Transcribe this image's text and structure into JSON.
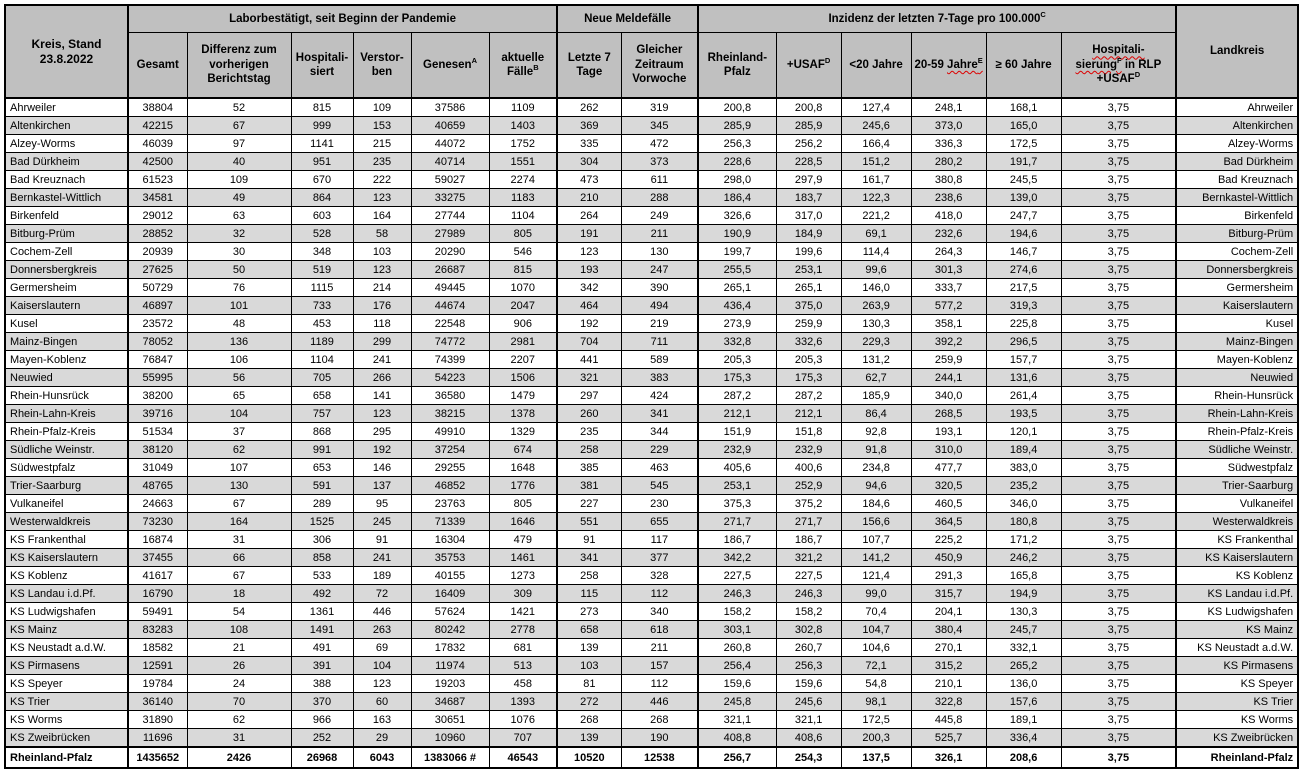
{
  "title": {
    "line1": "Kreis, Stand",
    "line2": "23.8.2022"
  },
  "header": {
    "laborbestaetigt": "Laborbestätigt, seit Beginn der Pandemie",
    "neue_meldefaelle": "Neue Meldefälle",
    "inzidenz": "Inzidenz der letzten 7-Tage pro 100.000",
    "inzidenz_sup": "C",
    "landkreis": "Landkreis",
    "gesamt": "Gesamt",
    "differenz": "Differenz zum vorherigen Berichtstag",
    "hospitalisiert": "Hospitali-siert",
    "verstorben": "Verstor-ben",
    "genesen": "Genesen",
    "genesen_sup": "A",
    "aktuelle_faelle": "aktuelle Fälle",
    "aktuelle_faelle_sup": "B",
    "letzte_7_tage": "Letzte 7 Tage",
    "gleicher_zeitraum": "Gleicher Zeitraum Vorwoche",
    "rheinland_pfalz": "Rheinland-Pfalz",
    "usaf": "+USAF",
    "usaf_sup": "D",
    "unter_20": "<20 Jahre",
    "jahre_20_59_prefix": "20-59 ",
    "jahre_20_59_wavy": "Jahre",
    "jahre_20_59_sup": "E",
    "ab_60": "≥ 60 Jahre",
    "hosp_line1": "Hospitali-",
    "hosp_line2_wavy": "sierung",
    "hosp_line2_sup": "F",
    "hosp_line2_rest": " in RLP",
    "hosp_line3": "+USAF",
    "hosp_line3_sup": "D"
  },
  "colors": {
    "header_bg": "#c0c0c0",
    "stripe_bg": "#d9d9d9",
    "border": "#000000",
    "spellcheck_underline": "#dd0000"
  },
  "rows": [
    {
      "kreis": "Ahrweiler",
      "values": [
        "38804",
        "52",
        "815",
        "109",
        "37586",
        "1109",
        "262",
        "319",
        "200,8",
        "200,8",
        "127,4",
        "248,1",
        "168,1",
        "3,75"
      ],
      "landkreis": "Ahrweiler"
    },
    {
      "kreis": "Altenkirchen",
      "values": [
        "42215",
        "67",
        "999",
        "153",
        "40659",
        "1403",
        "369",
        "345",
        "285,9",
        "285,9",
        "245,6",
        "373,0",
        "165,0",
        "3,75"
      ],
      "landkreis": "Altenkirchen"
    },
    {
      "kreis": "Alzey-Worms",
      "values": [
        "46039",
        "97",
        "1141",
        "215",
        "44072",
        "1752",
        "335",
        "472",
        "256,3",
        "256,2",
        "166,4",
        "336,3",
        "172,5",
        "3,75"
      ],
      "landkreis": "Alzey-Worms"
    },
    {
      "kreis": "Bad Dürkheim",
      "values": [
        "42500",
        "40",
        "951",
        "235",
        "40714",
        "1551",
        "304",
        "373",
        "228,6",
        "228,5",
        "151,2",
        "280,2",
        "191,7",
        "3,75"
      ],
      "landkreis": "Bad Dürkheim"
    },
    {
      "kreis": "Bad Kreuznach",
      "values": [
        "61523",
        "109",
        "670",
        "222",
        "59027",
        "2274",
        "473",
        "611",
        "298,0",
        "297,9",
        "161,7",
        "380,8",
        "245,5",
        "3,75"
      ],
      "landkreis": "Bad Kreuznach"
    },
    {
      "kreis": "Bernkastel-Wittlich",
      "values": [
        "34581",
        "49",
        "864",
        "123",
        "33275",
        "1183",
        "210",
        "288",
        "186,4",
        "183,7",
        "122,3",
        "238,6",
        "139,0",
        "3,75"
      ],
      "landkreis": "Bernkastel-Wittlich"
    },
    {
      "kreis": "Birkenfeld",
      "values": [
        "29012",
        "63",
        "603",
        "164",
        "27744",
        "1104",
        "264",
        "249",
        "326,6",
        "317,0",
        "221,2",
        "418,0",
        "247,7",
        "3,75"
      ],
      "landkreis": "Birkenfeld"
    },
    {
      "kreis": "Bitburg-Prüm",
      "values": [
        "28852",
        "32",
        "528",
        "58",
        "27989",
        "805",
        "191",
        "211",
        "190,9",
        "184,9",
        "69,1",
        "232,6",
        "194,6",
        "3,75"
      ],
      "landkreis": "Bitburg-Prüm"
    },
    {
      "kreis": "Cochem-Zell",
      "values": [
        "20939",
        "30",
        "348",
        "103",
        "20290",
        "546",
        "123",
        "130",
        "199,7",
        "199,6",
        "114,4",
        "264,3",
        "146,7",
        "3,75"
      ],
      "landkreis": "Cochem-Zell"
    },
    {
      "kreis": "Donnersbergkreis",
      "values": [
        "27625",
        "50",
        "519",
        "123",
        "26687",
        "815",
        "193",
        "247",
        "255,5",
        "253,1",
        "99,6",
        "301,3",
        "274,6",
        "3,75"
      ],
      "landkreis": "Donnersbergkreis"
    },
    {
      "kreis": "Germersheim",
      "values": [
        "50729",
        "76",
        "1115",
        "214",
        "49445",
        "1070",
        "342",
        "390",
        "265,1",
        "265,1",
        "146,0",
        "333,7",
        "217,5",
        "3,75"
      ],
      "landkreis": "Germersheim"
    },
    {
      "kreis": "Kaiserslautern",
      "values": [
        "46897",
        "101",
        "733",
        "176",
        "44674",
        "2047",
        "464",
        "494",
        "436,4",
        "375,0",
        "263,9",
        "577,2",
        "319,3",
        "3,75"
      ],
      "landkreis": "Kaiserslautern"
    },
    {
      "kreis": "Kusel",
      "values": [
        "23572",
        "48",
        "453",
        "118",
        "22548",
        "906",
        "192",
        "219",
        "273,9",
        "259,9",
        "130,3",
        "358,1",
        "225,8",
        "3,75"
      ],
      "landkreis": "Kusel"
    },
    {
      "kreis": "Mainz-Bingen",
      "values": [
        "78052",
        "136",
        "1189",
        "299",
        "74772",
        "2981",
        "704",
        "711",
        "332,8",
        "332,6",
        "229,3",
        "392,2",
        "296,5",
        "3,75"
      ],
      "landkreis": "Mainz-Bingen"
    },
    {
      "kreis": "Mayen-Koblenz",
      "values": [
        "76847",
        "106",
        "1104",
        "241",
        "74399",
        "2207",
        "441",
        "589",
        "205,3",
        "205,3",
        "131,2",
        "259,9",
        "157,7",
        "3,75"
      ],
      "landkreis": "Mayen-Koblenz"
    },
    {
      "kreis": "Neuwied",
      "values": [
        "55995",
        "56",
        "705",
        "266",
        "54223",
        "1506",
        "321",
        "383",
        "175,3",
        "175,3",
        "62,7",
        "244,1",
        "131,6",
        "3,75"
      ],
      "landkreis": "Neuwied"
    },
    {
      "kreis": "Rhein-Hunsrück",
      "values": [
        "38200",
        "65",
        "658",
        "141",
        "36580",
        "1479",
        "297",
        "424",
        "287,2",
        "287,2",
        "185,9",
        "340,0",
        "261,4",
        "3,75"
      ],
      "landkreis": "Rhein-Hunsrück"
    },
    {
      "kreis": "Rhein-Lahn-Kreis",
      "values": [
        "39716",
        "104",
        "757",
        "123",
        "38215",
        "1378",
        "260",
        "341",
        "212,1",
        "212,1",
        "86,4",
        "268,5",
        "193,5",
        "3,75"
      ],
      "landkreis": "Rhein-Lahn-Kreis"
    },
    {
      "kreis": "Rhein-Pfalz-Kreis",
      "values": [
        "51534",
        "37",
        "868",
        "295",
        "49910",
        "1329",
        "235",
        "344",
        "151,9",
        "151,8",
        "92,8",
        "193,1",
        "120,1",
        "3,75"
      ],
      "landkreis": "Rhein-Pfalz-Kreis"
    },
    {
      "kreis": "Südliche Weinstr.",
      "values": [
        "38120",
        "62",
        "991",
        "192",
        "37254",
        "674",
        "258",
        "229",
        "232,9",
        "232,9",
        "91,8",
        "310,0",
        "189,4",
        "3,75"
      ],
      "landkreis": "Südliche Weinstr."
    },
    {
      "kreis": "Südwestpfalz",
      "values": [
        "31049",
        "107",
        "653",
        "146",
        "29255",
        "1648",
        "385",
        "463",
        "405,6",
        "400,6",
        "234,8",
        "477,7",
        "383,0",
        "3,75"
      ],
      "landkreis": "Südwestpfalz"
    },
    {
      "kreis": "Trier-Saarburg",
      "values": [
        "48765",
        "130",
        "591",
        "137",
        "46852",
        "1776",
        "381",
        "545",
        "253,1",
        "252,9",
        "94,6",
        "320,5",
        "235,2",
        "3,75"
      ],
      "landkreis": "Trier-Saarburg"
    },
    {
      "kreis": "Vulkaneifel",
      "values": [
        "24663",
        "67",
        "289",
        "95",
        "23763",
        "805",
        "227",
        "230",
        "375,3",
        "375,2",
        "184,6",
        "460,5",
        "346,0",
        "3,75"
      ],
      "landkreis": "Vulkaneifel"
    },
    {
      "kreis": "Westerwaldkreis",
      "values": [
        "73230",
        "164",
        "1525",
        "245",
        "71339",
        "1646",
        "551",
        "655",
        "271,7",
        "271,7",
        "156,6",
        "364,5",
        "180,8",
        "3,75"
      ],
      "landkreis": "Westerwaldkreis"
    },
    {
      "kreis": "KS Frankenthal",
      "values": [
        "16874",
        "31",
        "306",
        "91",
        "16304",
        "479",
        "91",
        "117",
        "186,7",
        "186,7",
        "107,7",
        "225,2",
        "171,2",
        "3,75"
      ],
      "landkreis": "KS Frankenthal"
    },
    {
      "kreis": "KS Kaiserslautern",
      "values": [
        "37455",
        "66",
        "858",
        "241",
        "35753",
        "1461",
        "341",
        "377",
        "342,2",
        "321,2",
        "141,2",
        "450,9",
        "246,2",
        "3,75"
      ],
      "landkreis": "KS Kaiserslautern"
    },
    {
      "kreis": "KS Koblenz",
      "values": [
        "41617",
        "67",
        "533",
        "189",
        "40155",
        "1273",
        "258",
        "328",
        "227,5",
        "227,5",
        "121,4",
        "291,3",
        "165,8",
        "3,75"
      ],
      "landkreis": "KS Koblenz"
    },
    {
      "kreis": "KS Landau i.d.Pf.",
      "values": [
        "16790",
        "18",
        "492",
        "72",
        "16409",
        "309",
        "115",
        "112",
        "246,3",
        "246,3",
        "99,0",
        "315,7",
        "194,9",
        "3,75"
      ],
      "landkreis": "KS Landau i.d.Pf."
    },
    {
      "kreis": "KS Ludwigshafen",
      "values": [
        "59491",
        "54",
        "1361",
        "446",
        "57624",
        "1421",
        "273",
        "340",
        "158,2",
        "158,2",
        "70,4",
        "204,1",
        "130,3",
        "3,75"
      ],
      "landkreis": "KS Ludwigshafen"
    },
    {
      "kreis": "KS Mainz",
      "values": [
        "83283",
        "108",
        "1491",
        "263",
        "80242",
        "2778",
        "658",
        "618",
        "303,1",
        "302,8",
        "104,7",
        "380,4",
        "245,7",
        "3,75"
      ],
      "landkreis": "KS Mainz"
    },
    {
      "kreis": "KS Neustadt a.d.W.",
      "values": [
        "18582",
        "21",
        "491",
        "69",
        "17832",
        "681",
        "139",
        "211",
        "260,8",
        "260,7",
        "104,6",
        "270,1",
        "332,1",
        "3,75"
      ],
      "landkreis": "KS Neustadt a.d.W."
    },
    {
      "kreis": "KS Pirmasens",
      "values": [
        "12591",
        "26",
        "391",
        "104",
        "11974",
        "513",
        "103",
        "157",
        "256,4",
        "256,3",
        "72,1",
        "315,2",
        "265,2",
        "3,75"
      ],
      "landkreis": "KS Pirmasens"
    },
    {
      "kreis": "KS Speyer",
      "values": [
        "19784",
        "24",
        "388",
        "123",
        "19203",
        "458",
        "81",
        "112",
        "159,6",
        "159,6",
        "54,8",
        "210,1",
        "136,0",
        "3,75"
      ],
      "landkreis": "KS Speyer"
    },
    {
      "kreis": "KS Trier",
      "values": [
        "36140",
        "70",
        "370",
        "60",
        "34687",
        "1393",
        "272",
        "446",
        "245,8",
        "245,6",
        "98,1",
        "322,8",
        "157,6",
        "3,75"
      ],
      "landkreis": "KS Trier"
    },
    {
      "kreis": "KS Worms",
      "values": [
        "31890",
        "62",
        "966",
        "163",
        "30651",
        "1076",
        "268",
        "268",
        "321,1",
        "321,1",
        "172,5",
        "445,8",
        "189,1",
        "3,75"
      ],
      "landkreis": "KS Worms"
    },
    {
      "kreis": "KS Zweibrücken",
      "values": [
        "11696",
        "31",
        "252",
        "29",
        "10960",
        "707",
        "139",
        "190",
        "408,8",
        "408,6",
        "200,3",
        "525,7",
        "336,4",
        "3,75"
      ],
      "landkreis": "KS Zweibrücken"
    }
  ],
  "total": {
    "kreis": "Rheinland-Pfalz",
    "values": [
      "1435652",
      "2426",
      "26968",
      "6043",
      "1383066 #",
      "46543",
      "10520",
      "12538",
      "256,7",
      "254,3",
      "137,5",
      "326,1",
      "208,6",
      "3,75"
    ],
    "landkreis": "Rheinland-Pfalz"
  }
}
